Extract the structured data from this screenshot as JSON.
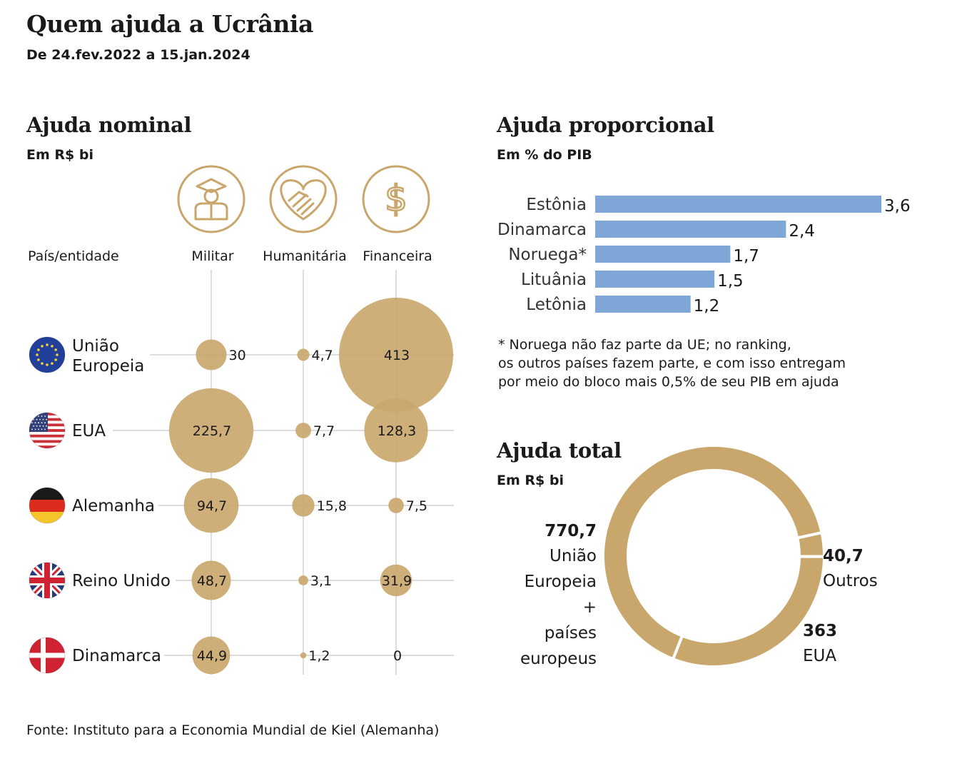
{
  "title": "Quem ajuda a Ucrânia",
  "subtitle": "De 24.fev.2022 a 15.jan.2024",
  "source": "Fonte: Instituto para a Economia Mundial de Kiel (Alemanha)",
  "colors": {
    "gold": "#c9a66b",
    "gold_stroke": "#c9a66b",
    "blue": "#7ea7d8",
    "grid": "#dddddd"
  },
  "chart_data": [
    {
      "type": "scatter",
      "title": "Ajuda nominal",
      "unit": "Em R$ bi",
      "row_header": "País/entidade",
      "columns": [
        {
          "label": "Militar",
          "icon": "soldier-icon"
        },
        {
          "label": "Humanitária",
          "icon": "handshake-heart-icon"
        },
        {
          "label": "Financeira",
          "icon": "dollar-icon"
        }
      ],
      "rows": [
        {
          "label": "União\nEuropeia",
          "flag": "eu-flag-icon",
          "values": [
            30,
            4.7,
            413
          ],
          "labels": [
            "30",
            "4,7",
            "413"
          ]
        },
        {
          "label": "EUA",
          "flag": "us-flag-icon",
          "values": [
            225.7,
            7.7,
            128.3
          ],
          "labels": [
            "225,7",
            "7,7",
            "128,3"
          ]
        },
        {
          "label": "Alemanha",
          "flag": "germany-flag-icon",
          "values": [
            94.7,
            15.8,
            7.5
          ],
          "labels": [
            "94,7",
            "15,8",
            "7,5"
          ]
        },
        {
          "label": "Reino Unido",
          "flag": "uk-flag-icon",
          "values": [
            48.7,
            3.1,
            31.9
          ],
          "labels": [
            "48,7",
            "3,1",
            "31,9"
          ]
        },
        {
          "label": "Dinamarca",
          "flag": "denmark-flag-icon",
          "values": [
            44.9,
            1.2,
            0
          ],
          "labels": [
            "44,9",
            "1,2",
            "0"
          ]
        }
      ]
    },
    {
      "type": "bar",
      "title": "Ajuda proporcional",
      "unit": "Em % do PIB",
      "categories": [
        "Estônia",
        "Dinamarca",
        "Noruega*",
        "Lituânia",
        "Letônia"
      ],
      "values": [
        3.6,
        2.4,
        1.7,
        1.5,
        1.2
      ],
      "labels": [
        "3,6",
        "2,4",
        "1,7",
        "1,5",
        "1,2"
      ],
      "xlim": [
        0,
        3.6
      ],
      "note": "* Noruega não faz parte da UE; no ranking,\nos outros países fazem parte, e com isso entregam\npor meio do bloco mais 0,5% de seu PIB em ajuda"
    },
    {
      "type": "pie",
      "title": "Ajuda total",
      "unit": "Em R$ bi",
      "slices": [
        {
          "value": 770.7,
          "label": "770,7",
          "name": [
            "União",
            "Europeia",
            "+",
            "países",
            "europeus"
          ]
        },
        {
          "value": 40.7,
          "label": "40,7",
          "name": [
            "Outros"
          ]
        },
        {
          "value": 363,
          "label": "363",
          "name": [
            "EUA"
          ]
        }
      ]
    }
  ]
}
